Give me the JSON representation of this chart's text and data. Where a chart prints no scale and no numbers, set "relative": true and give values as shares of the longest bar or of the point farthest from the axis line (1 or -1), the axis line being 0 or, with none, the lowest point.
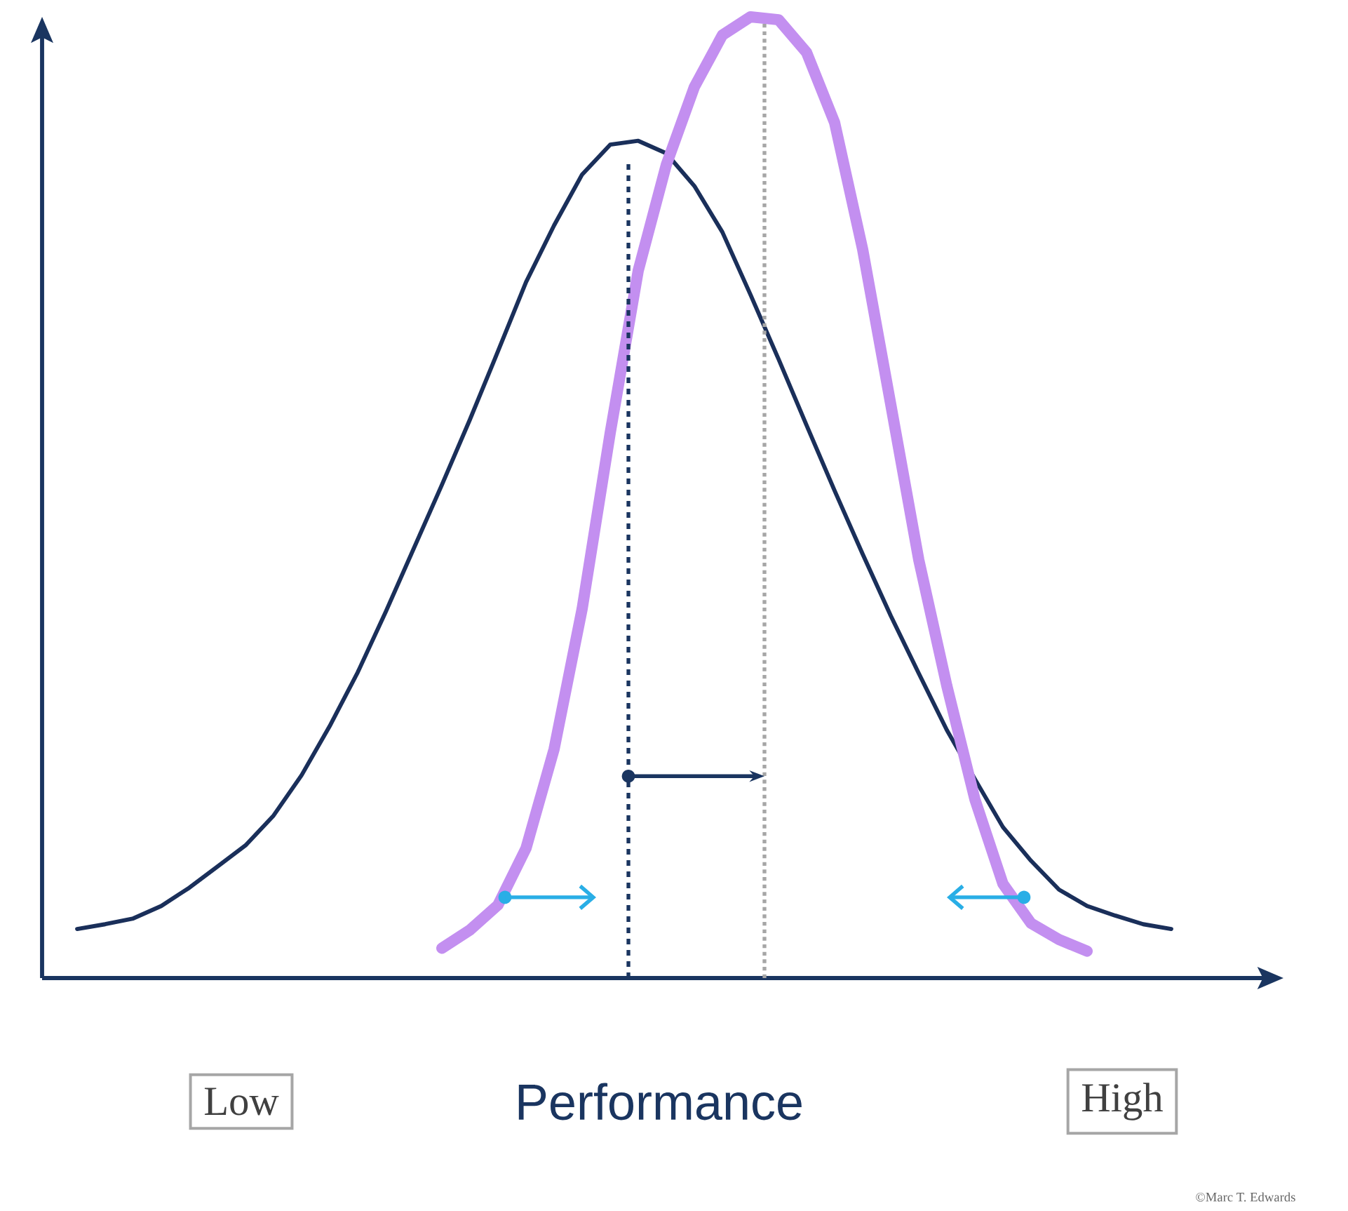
{
  "chart_data": {
    "type": "line",
    "relative": true,
    "xlabel": "Performance",
    "marker": "none",
    "line_style": "solid",
    "categories": [
      null,
      null,
      null,
      null,
      null,
      null,
      null,
      null,
      null,
      null,
      null,
      null,
      null,
      null,
      null,
      null,
      null,
      null,
      null,
      null,
      null,
      null,
      null,
      null,
      null,
      null,
      null,
      null,
      null,
      null,
      null,
      null,
      null,
      null,
      null,
      null,
      null,
      null,
      null,
      null,
      null
    ],
    "annotations": [
      "Low",
      "High",
      "©Marc T. Edwards"
    ],
    "series": [
      {
        "color": "#1a2f5a",
        "values": [
          0.051,
          0.056,
          0.062,
          0.075,
          0.094,
          0.116,
          0.138,
          0.169,
          0.211,
          0.262,
          0.318,
          0.381,
          0.447,
          0.513,
          0.581,
          0.652,
          0.724,
          0.783,
          0.836,
          0.867,
          0.871,
          0.858,
          0.824,
          0.776,
          0.711,
          0.644,
          0.575,
          0.507,
          0.441,
          0.377,
          0.317,
          0.258,
          0.207,
          0.157,
          0.122,
          0.092,
          0.075,
          0.065,
          0.056,
          0.051,
          null
        ]
      },
      {
        "color": "#c38ff0",
        "values": [
          null,
          null,
          null,
          null,
          null,
          null,
          null,
          null,
          null,
          null,
          null,
          null,
          null,
          0.031,
          0.05,
          0.076,
          0.135,
          0.238,
          0.384,
          0.567,
          0.736,
          0.846,
          0.927,
          0.981,
          1,
          0.997,
          0.963,
          0.89,
          0.758,
          0.597,
          0.435,
          0.304,
          0.186,
          0.098,
          0.057,
          0.04,
          0.028,
          null,
          null,
          null,
          null
        ]
      }
    ]
  }
}
